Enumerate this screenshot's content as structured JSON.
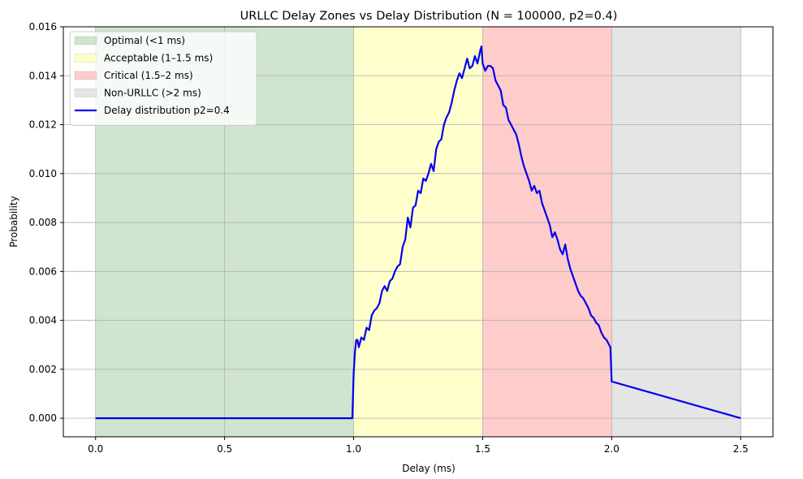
{
  "chart_data": {
    "type": "line",
    "title": "URLLC Delay Zones vs Delay Distribution (N = 100000, p2=0.4)",
    "xlabel": "Delay (ms)",
    "ylabel": "Probability",
    "xlim": [
      -0.125,
      2.625
    ],
    "ylim": [
      -0.00076,
      0.016
    ],
    "x_ticks": [
      0.0,
      0.5,
      1.0,
      1.5,
      2.0,
      2.5
    ],
    "x_tick_labels": [
      "0.0",
      "0.5",
      "1.0",
      "1.5",
      "2.0",
      "2.5"
    ],
    "y_ticks": [
      0.0,
      0.002,
      0.004,
      0.006,
      0.008,
      0.01,
      0.012,
      0.014,
      0.016
    ],
    "y_tick_labels": [
      "0.000",
      "0.002",
      "0.004",
      "0.006",
      "0.008",
      "0.010",
      "0.012",
      "0.014",
      "0.016"
    ],
    "grid": true,
    "legend_position": "top-left",
    "zones": [
      {
        "name": "Optimal (<1 ms)",
        "x0": 0.0,
        "x1": 1.0,
        "color": "#cfe5cf"
      },
      {
        "name": "Acceptable (1–1.5 ms)",
        "x0": 1.0,
        "x1": 1.5,
        "color": "#ffffcc"
      },
      {
        "name": "Critical (1.5–2 ms)",
        "x0": 1.5,
        "x1": 2.0,
        "color": "#ffcccc"
      },
      {
        "name": "Non-URLLC (>2 ms)",
        "x0": 2.0,
        "x1": 2.5,
        "color": "#e5e5e5"
      }
    ],
    "series": [
      {
        "name": "Delay distribution p2=0.4",
        "color": "#0000ee",
        "x": [
          0.0,
          0.995,
          1.0,
          1.005,
          1.01,
          1.015,
          1.02,
          1.025,
          1.03,
          1.04,
          1.05,
          1.06,
          1.07,
          1.075,
          1.08,
          1.09,
          1.1,
          1.11,
          1.12,
          1.13,
          1.14,
          1.15,
          1.16,
          1.17,
          1.18,
          1.19,
          1.2,
          1.21,
          1.22,
          1.23,
          1.24,
          1.25,
          1.26,
          1.27,
          1.28,
          1.29,
          1.3,
          1.31,
          1.32,
          1.33,
          1.34,
          1.35,
          1.36,
          1.37,
          1.38,
          1.39,
          1.4,
          1.41,
          1.42,
          1.43,
          1.44,
          1.45,
          1.46,
          1.47,
          1.48,
          1.49,
          1.495,
          1.5,
          1.51,
          1.52,
          1.53,
          1.54,
          1.55,
          1.56,
          1.57,
          1.58,
          1.59,
          1.6,
          1.61,
          1.62,
          1.63,
          1.64,
          1.65,
          1.66,
          1.67,
          1.68,
          1.69,
          1.7,
          1.71,
          1.72,
          1.73,
          1.74,
          1.75,
          1.76,
          1.77,
          1.78,
          1.79,
          1.8,
          1.81,
          1.82,
          1.83,
          1.84,
          1.85,
          1.86,
          1.87,
          1.88,
          1.89,
          1.9,
          1.91,
          1.92,
          1.93,
          1.94,
          1.95,
          1.96,
          1.97,
          1.98,
          1.99,
          1.995,
          2.0,
          2.5
        ],
        "y": [
          0.0,
          0.0,
          0.0018,
          0.0027,
          0.0032,
          0.0032,
          0.0029,
          0.0031,
          0.0033,
          0.0032,
          0.0037,
          0.0036,
          0.0042,
          0.0043,
          0.0044,
          0.0045,
          0.0047,
          0.0052,
          0.0054,
          0.0052,
          0.0056,
          0.0057,
          0.006,
          0.0062,
          0.0063,
          0.007,
          0.0073,
          0.0082,
          0.0078,
          0.0086,
          0.0087,
          0.0093,
          0.0092,
          0.0098,
          0.0097,
          0.01,
          0.0104,
          0.0101,
          0.011,
          0.0113,
          0.0114,
          0.012,
          0.0123,
          0.0125,
          0.0129,
          0.0134,
          0.0138,
          0.0141,
          0.0139,
          0.0143,
          0.0147,
          0.0143,
          0.0144,
          0.0148,
          0.0145,
          0.015,
          0.0152,
          0.0145,
          0.0142,
          0.0144,
          0.0144,
          0.0143,
          0.0138,
          0.0136,
          0.0134,
          0.0128,
          0.0127,
          0.0122,
          0.012,
          0.0118,
          0.0116,
          0.0112,
          0.0107,
          0.0103,
          0.01,
          0.0097,
          0.0093,
          0.0095,
          0.0092,
          0.0093,
          0.0088,
          0.0085,
          0.0082,
          0.0079,
          0.0074,
          0.0076,
          0.0073,
          0.0069,
          0.0067,
          0.0071,
          0.0065,
          0.0061,
          0.0058,
          0.0055,
          0.0052,
          0.005,
          0.0049,
          0.0047,
          0.0045,
          0.0042,
          0.0041,
          0.0039,
          0.0038,
          0.0035,
          0.0033,
          0.0032,
          0.003,
          0.0029,
          0.0015,
          0.0
        ]
      }
    ]
  }
}
